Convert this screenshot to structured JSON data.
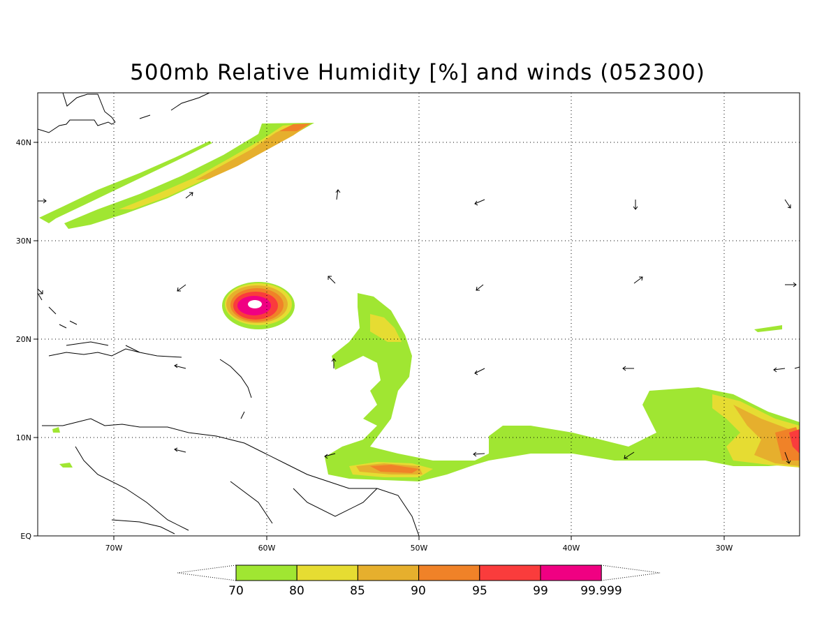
{
  "title": "500mb Relative Humidity [%] and winds (052300)",
  "x_ticks": [
    "70W",
    "60W",
    "50W",
    "40W",
    "30W"
  ],
  "y_ticks": [
    "40N",
    "30N",
    "20N",
    "10N",
    "EQ"
  ],
  "colorbar": {
    "levels": [
      "70",
      "80",
      "85",
      "90",
      "95",
      "99",
      "99.999"
    ],
    "colors": [
      "#a0e632",
      "#e6dc32",
      "#e6af2d",
      "#f08228",
      "#fa3c3c",
      "#f00082"
    ]
  }
}
